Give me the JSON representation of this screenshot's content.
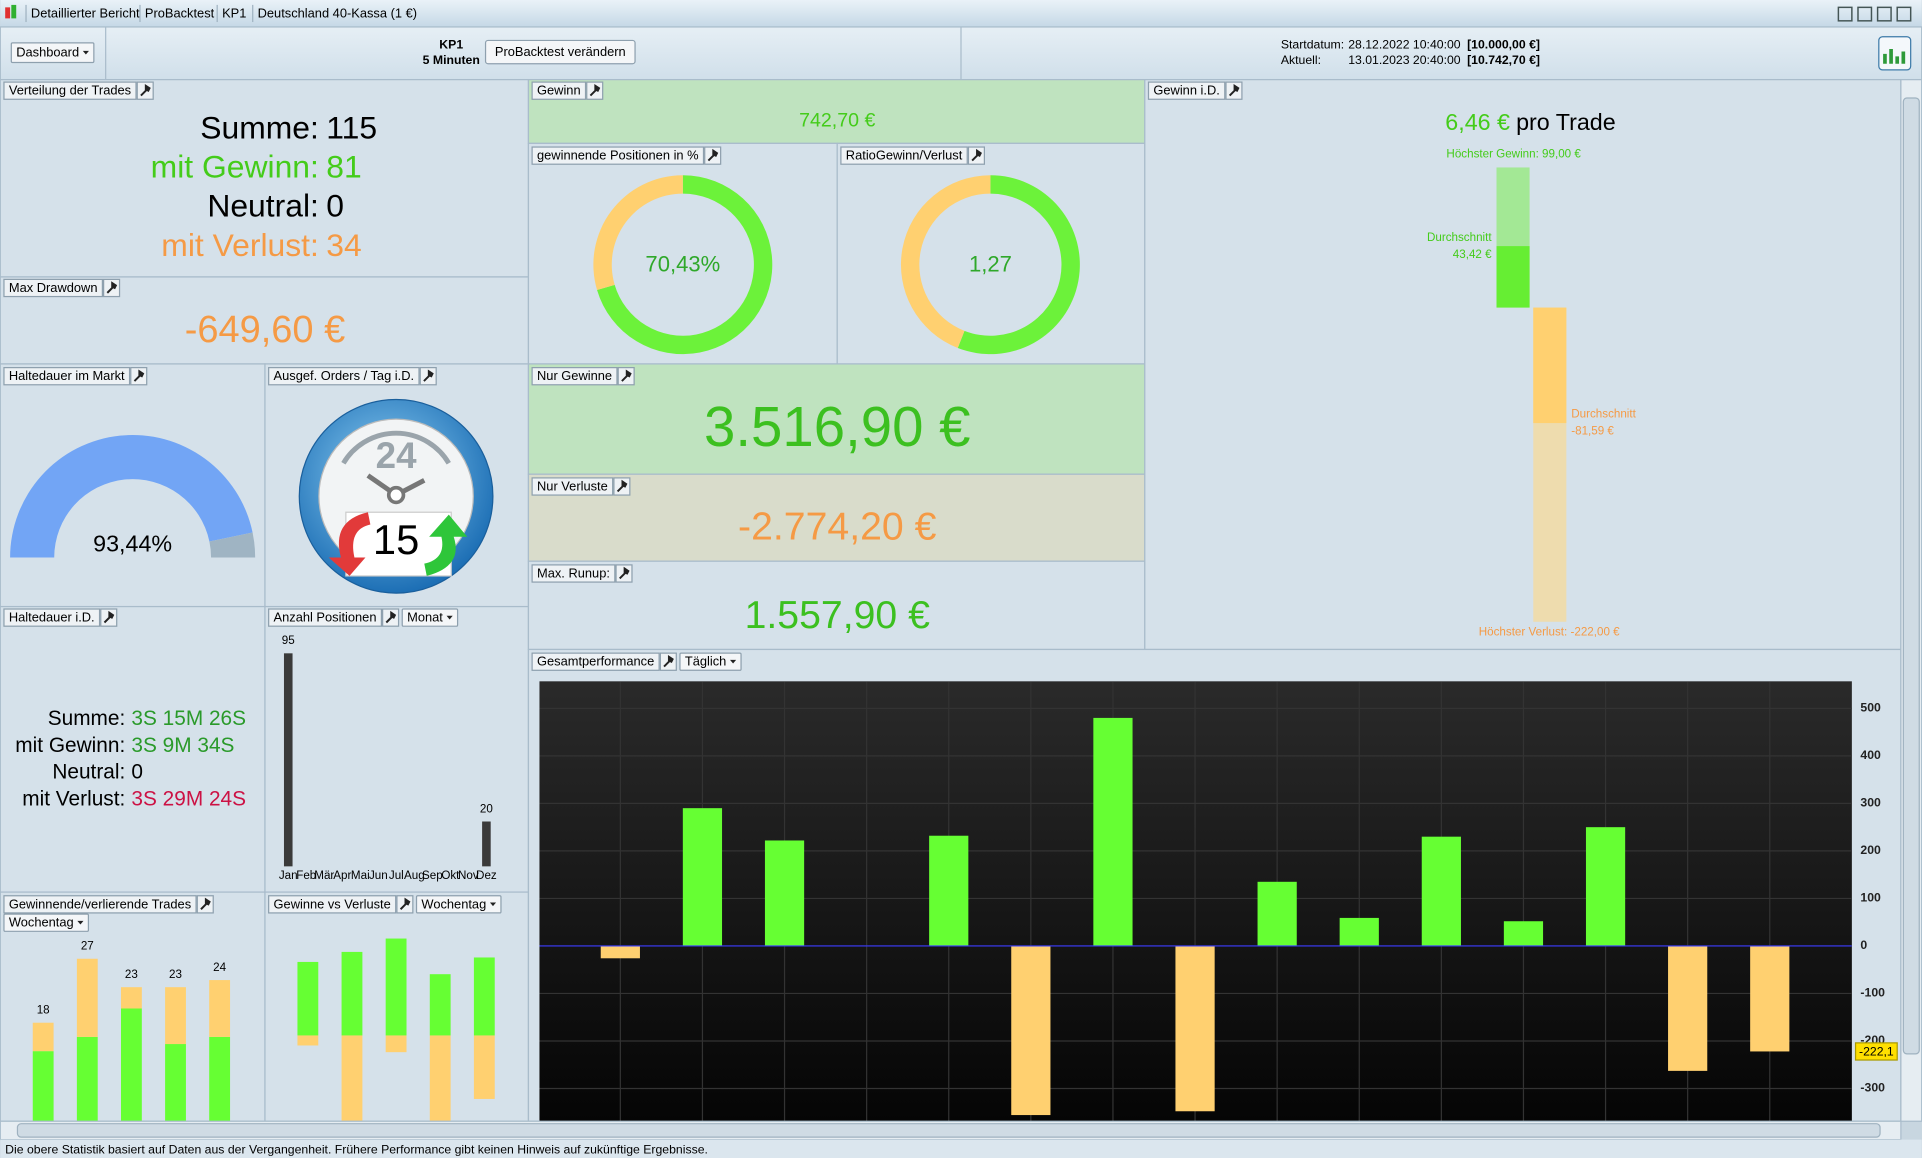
{
  "window": {
    "tabs": [
      "Detaillierter Bericht",
      "ProBacktest",
      "KP1",
      "Deutschland 40-Kassa (1 €)"
    ]
  },
  "toolbar": {
    "dashboard": "Dashboard",
    "system": "KP1",
    "timeframe": "5 Minuten",
    "change_button": "ProBacktest verändern",
    "start_label": "Startdatum:",
    "start_date": "28.12.2022 10:40:00",
    "start_capital": "[10.000,00 €]",
    "current_label": "Aktuell:",
    "current_date": "13.01.2023 20:40:00",
    "current_capital": "[10.742,70 €]"
  },
  "trade_distribution": {
    "title": "Verteilung der Trades",
    "rows": [
      [
        "Summe:",
        "115"
      ],
      [
        "mit Gewinn:",
        "81"
      ],
      [
        "Neutral:",
        "0"
      ],
      [
        "mit Verlust:",
        "34"
      ]
    ]
  },
  "max_drawdown": {
    "title": "Max Drawdown",
    "value": "-649,60 €"
  },
  "time_in_market": {
    "title": "Haltedauer im Markt",
    "value": 93.44,
    "label": "93,44%"
  },
  "orders_per_day": {
    "title": "Ausgef. Orders / Tag i.D.",
    "hours": "24",
    "value": "15"
  },
  "holding_time": {
    "title": "Haltedauer i.D.",
    "rows": [
      [
        "Summe:",
        "3S 15M 26S"
      ],
      [
        "mit Gewinn:",
        "3S 9M 34S"
      ],
      [
        "Neutral:",
        "0"
      ],
      [
        "mit Verlust:",
        "3S 29M 24S"
      ]
    ]
  },
  "positions": {
    "title": "Anzahl Positionen",
    "period": "Monat",
    "type": "bar",
    "color": "#3a3a3a",
    "categories": [
      "Jan",
      "Feb",
      "Mär",
      "Apr",
      "Mai",
      "Jun",
      "Jul",
      "Aug",
      "Sep",
      "Okt",
      "Nov",
      "Dez"
    ],
    "values": [
      95,
      0,
      0,
      0,
      0,
      0,
      0,
      0,
      0,
      0,
      0,
      20
    ]
  },
  "win_loss_trades": {
    "title": "Gewinnende/verlierende Trades",
    "period": "Wochentag",
    "type": "stacked-bar",
    "series": [
      {
        "color": "#66ff33",
        "values": [
          14,
          16,
          20,
          15,
          16
        ]
      },
      {
        "color": "#ffd070",
        "values": [
          4,
          11,
          3,
          8,
          8
        ]
      }
    ],
    "totals": [
      18,
      27,
      23,
      23,
      24
    ]
  },
  "gains_vs_losses": {
    "title": "Gewinne vs Verluste",
    "period": "Wochentag",
    "type": "bar",
    "series": [
      {
        "color": "#66ff33",
        "values": [
          660,
          750,
          870,
          550,
          700
        ]
      },
      {
        "color": "#ffd070",
        "values": [
          -90,
          -980,
          -150,
          -980,
          -570
        ]
      }
    ]
  },
  "profit": {
    "title": "Gewinn",
    "value": "742,70 €"
  },
  "winning_positions": {
    "title": "gewinnende Positionen in %",
    "value": 70.43,
    "label": "70,43%"
  },
  "ratio": {
    "title": "RatioGewinn/Verlust",
    "value": 1.27,
    "label": "1,27"
  },
  "gains_only": {
    "title": "Nur Gewinne",
    "value": "3.516,90 €"
  },
  "losses_only": {
    "title": "Nur Verluste",
    "value": "-2.774,20 €"
  },
  "max_runup": {
    "title": "Max. Runup:",
    "value": "1.557,90 €"
  },
  "profit_per_trade": {
    "title": "Gewinn i.D.",
    "value": "6,46 €",
    "unit": "pro Trade",
    "max_gain": {
      "value": 99,
      "label": "Höchster Gewinn: 99,00 €"
    },
    "avg_gain": {
      "value": 43.42,
      "name": "Durchschnitt",
      "label": "43,42 €"
    },
    "avg_loss": {
      "value": -81.59,
      "name": "Durchschnitt",
      "label": "-81,59 €"
    },
    "max_loss": {
      "value": -222,
      "label": "Höchster Verlust: -222,00 €"
    }
  },
  "performance": {
    "title": "Gesamtperformance",
    "period": "Täglich",
    "type": "bar",
    "values": [
      -26,
      290,
      222,
      0,
      232,
      -356,
      480,
      -348,
      135,
      59,
      230,
      52,
      250,
      -263,
      -222.1
    ],
    "value_labels": [
      null,
      null,
      null,
      null,
      null,
      null,
      null,
      null,
      null,
      null,
      null,
      null,
      null,
      null,
      "-222,1"
    ],
    "ylim": [
      -369,
      557
    ],
    "yticks": [
      500,
      400,
      300,
      200,
      100,
      0,
      -100,
      -200,
      -300
    ],
    "grid": true
  },
  "footer": "Die obere Statistik basiert auf Daten aus der Vergangenheit. Frühere Performance gibt keinen Hinweis auf zukünftige Ergebnisse."
}
